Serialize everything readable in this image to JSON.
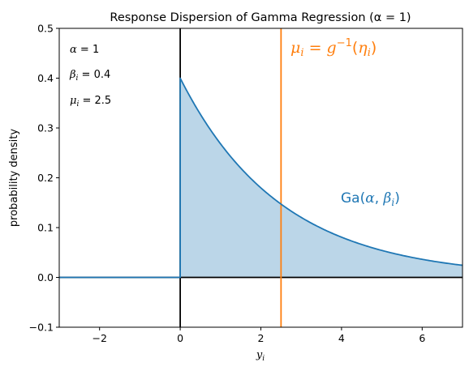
{
  "chart_data": {
    "type": "area",
    "title": "Response Dispersion of Gamma Regression (α = 1)",
    "xlabel": "y_i",
    "ylabel": "probability density",
    "xlim": [
      -3,
      7
    ],
    "ylim": [
      -0.1,
      0.5
    ],
    "x_ticks": [
      -2,
      0,
      2,
      4,
      6
    ],
    "y_ticks": [
      -0.1,
      0.0,
      0.1,
      0.2,
      0.3,
      0.4,
      0.5
    ],
    "x_tick_labels": [
      "−2",
      "0",
      "2",
      "4",
      "6"
    ],
    "y_tick_labels": [
      "−0.1",
      "0.0",
      "0.1",
      "0.2",
      "0.3",
      "0.4",
      "0.5"
    ],
    "grid": false,
    "parameters": {
      "alpha": 1,
      "beta": 0.4,
      "mu": 2.5
    },
    "series": [
      {
        "name": "Ga(α, β_i)",
        "distribution": "exponential",
        "rate": 0.4,
        "color": "#1f77b4",
        "fill": true,
        "fill_alpha": 0.3
      }
    ],
    "vertical_lines": [
      {
        "x": 2.5,
        "label": "μ_i = g⁻¹(η_i)",
        "color": "#ff7f0e"
      },
      {
        "x": 0,
        "color": "#000000"
      }
    ],
    "horizontal_lines": [
      {
        "y": 0,
        "color": "#000000"
      }
    ],
    "annotations": {
      "alpha_label": "α = 1",
      "beta_label": "β_i = 0.4",
      "mu_label": "μ_i = 2.5",
      "mean_label": "μ_i = g⁻¹(η_i)",
      "dist_label": "Ga(α, β_i)"
    }
  }
}
